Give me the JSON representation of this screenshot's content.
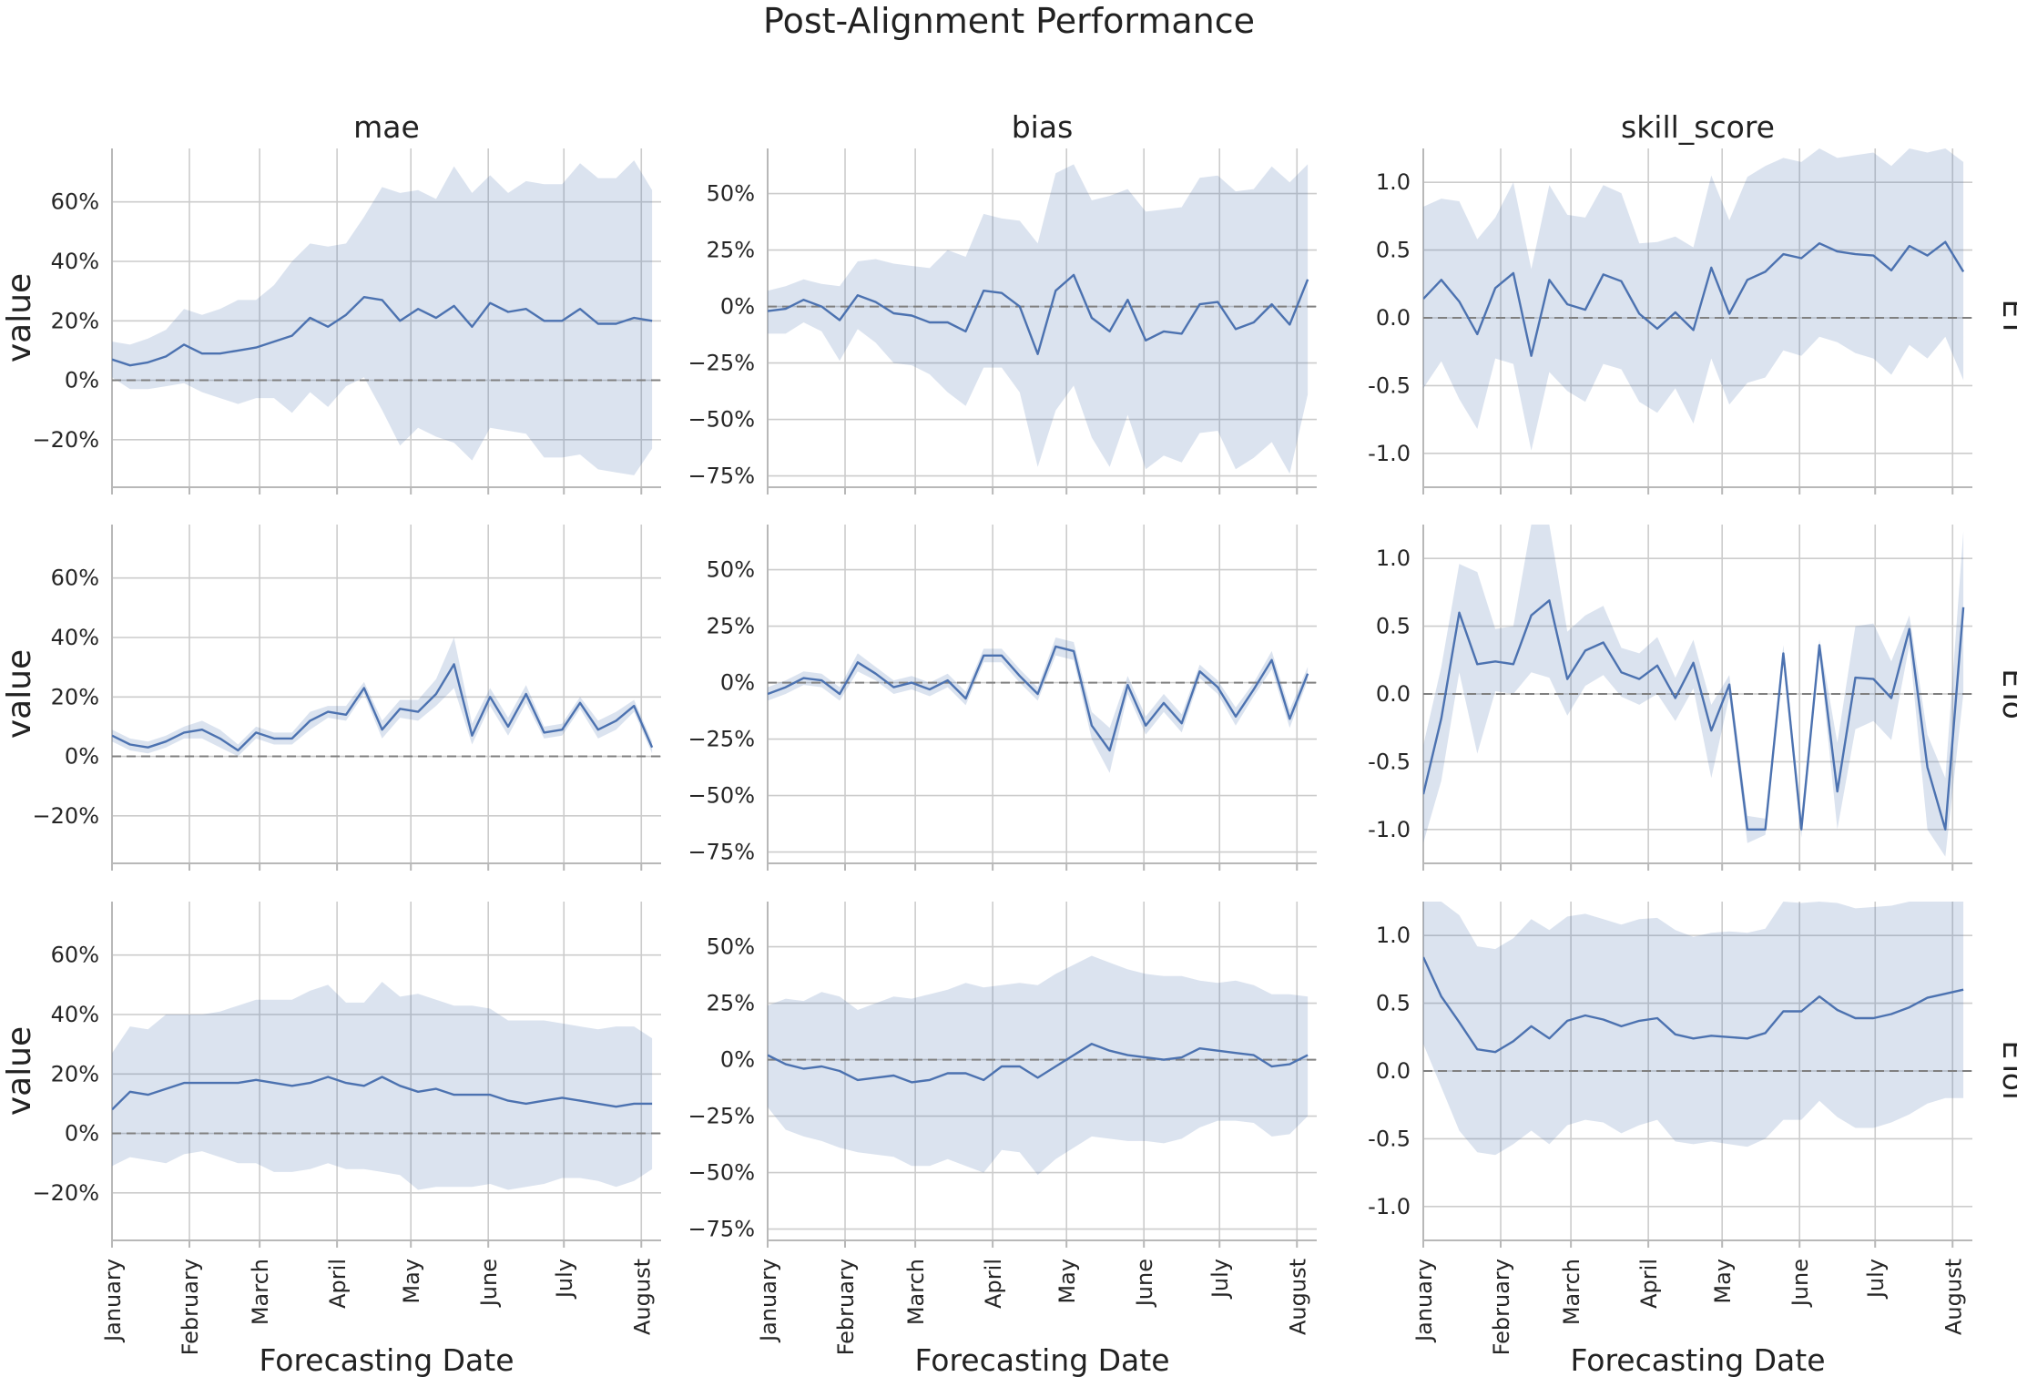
{
  "chart_data": {
    "type": "line",
    "title": "Post-Alignment Performance",
    "columns": [
      "mae",
      "bias",
      "skill_score"
    ],
    "rows": [
      "ET",
      "ETo",
      "ETof"
    ],
    "xlabel": "Forecasting Date",
    "ylabel": "value",
    "xlim": [
      0,
      30.5
    ],
    "x_ticks": [
      {
        "label": "January",
        "x": 0
      },
      {
        "label": "February",
        "x": 4.3
      },
      {
        "label": "March",
        "x": 8.2
      },
      {
        "label": "April",
        "x": 12.5
      },
      {
        "label": "May",
        "x": 16.6
      },
      {
        "label": "June",
        "x": 20.9
      },
      {
        "label": "July",
        "x": 25.1
      },
      {
        "label": "August",
        "x": 29.4
      }
    ],
    "x": [
      0,
      1,
      2,
      3,
      4,
      5,
      6,
      7,
      8,
      9,
      10,
      11,
      12,
      13,
      14,
      15,
      16,
      17,
      18,
      19,
      20,
      21,
      22,
      23,
      24,
      25,
      26,
      27,
      28,
      29,
      30
    ],
    "reference_line": 0,
    "colors": {
      "line": "#4c72b0",
      "band": "#4c72b0",
      "reference": "#808080"
    },
    "panels": [
      {
        "row": "ET",
        "col": "mae",
        "ylim": [
          -36,
          78
        ],
        "yticks": [
          -20,
          0,
          20,
          40,
          60
        ],
        "tick_format": "percent",
        "values": [
          7,
          5,
          6,
          8,
          12,
          9,
          9,
          10,
          11,
          13,
          15,
          21,
          18,
          22,
          28,
          27,
          20,
          24,
          21,
          25,
          18,
          26,
          23,
          24,
          20,
          20,
          24,
          19,
          19,
          21,
          20
        ],
        "upper": [
          13,
          12,
          14,
          17,
          24,
          22,
          24,
          27,
          27,
          32,
          40,
          46,
          45,
          46,
          55,
          65,
          63,
          64,
          61,
          72,
          63,
          69,
          63,
          67,
          66,
          66,
          73,
          68,
          68,
          74,
          64
        ],
        "lower": [
          1,
          -3,
          -3,
          -2,
          -1,
          -4,
          -6,
          -8,
          -6,
          -6,
          -11,
          -4,
          -9,
          -2,
          1,
          -10,
          -22,
          -16,
          -19,
          -21,
          -27,
          -16,
          -17,
          -18,
          -26,
          -26,
          -25,
          -30,
          -31,
          -32,
          -23
        ]
      },
      {
        "row": "ET",
        "col": "bias",
        "ylim": [
          -80,
          70
        ],
        "yticks": [
          -75,
          -50,
          -25,
          0,
          25,
          50
        ],
        "tick_format": "percent",
        "values": [
          -2,
          -1,
          3,
          0,
          -6,
          5,
          2,
          -3,
          -4,
          -7,
          -7,
          -11,
          7,
          6,
          0,
          -21,
          7,
          14,
          -5,
          -11,
          3,
          -15,
          -11,
          -12,
          1,
          2,
          -10,
          -7,
          1,
          -8,
          12
        ],
        "upper": [
          7,
          9,
          12,
          10,
          9,
          20,
          21,
          19,
          18,
          17,
          25,
          22,
          41,
          39,
          38,
          28,
          59,
          63,
          47,
          49,
          52,
          42,
          43,
          44,
          57,
          58,
          51,
          52,
          62,
          55,
          63
        ],
        "lower": [
          -12,
          -12,
          -7,
          -11,
          -24,
          -10,
          -16,
          -25,
          -26,
          -30,
          -38,
          -44,
          -27,
          -27,
          -38,
          -71,
          -46,
          -35,
          -58,
          -71,
          -48,
          -72,
          -66,
          -69,
          -56,
          -55,
          -72,
          -67,
          -60,
          -74,
          -39
        ]
      },
      {
        "row": "ET",
        "col": "skill_score",
        "ylim": [
          -1.25,
          1.25
        ],
        "yticks": [
          -1,
          -0.5,
          0,
          0.5,
          1
        ],
        "tick_format": "decimal1",
        "values": [
          0.14,
          0.28,
          0.12,
          -0.12,
          0.22,
          0.33,
          -0.28,
          0.28,
          0.1,
          0.06,
          0.32,
          0.27,
          0.03,
          -0.08,
          0.04,
          -0.09,
          0.37,
          0.03,
          0.28,
          0.34,
          0.47,
          0.44,
          0.55,
          0.49,
          0.47,
          0.46,
          0.35,
          0.53,
          0.46,
          0.56,
          0.34
        ],
        "upper": [
          0.82,
          0.88,
          0.86,
          0.58,
          0.74,
          1.0,
          0.36,
          0.98,
          0.76,
          0.74,
          0.98,
          0.92,
          0.55,
          0.56,
          0.6,
          0.52,
          1.05,
          0.72,
          1.04,
          1.12,
          1.18,
          1.15,
          1.25,
          1.18,
          1.2,
          1.22,
          1.12,
          1.25,
          1.22,
          1.25,
          1.15
        ],
        "lower": [
          -0.52,
          -0.32,
          -0.6,
          -0.82,
          -0.3,
          -0.34,
          -0.98,
          -0.4,
          -0.54,
          -0.62,
          -0.34,
          -0.38,
          -0.62,
          -0.7,
          -0.52,
          -0.78,
          -0.3,
          -0.64,
          -0.48,
          -0.44,
          -0.24,
          -0.28,
          -0.14,
          -0.18,
          -0.26,
          -0.3,
          -0.42,
          -0.2,
          -0.3,
          -0.14,
          -0.46
        ]
      },
      {
        "row": "ETo",
        "col": "mae",
        "ylim": [
          -36,
          78
        ],
        "yticks": [
          -20,
          0,
          20,
          40,
          60
        ],
        "tick_format": "percent",
        "values": [
          7,
          4,
          3,
          5,
          8,
          9,
          6,
          2,
          8,
          6,
          6,
          12,
          15,
          14,
          23,
          9,
          16,
          15,
          21,
          31,
          7,
          20,
          10,
          21,
          8,
          9,
          18,
          9,
          12,
          17,
          3
        ],
        "upper": [
          9,
          6,
          5,
          7,
          10,
          12,
          9,
          4,
          10,
          8,
          8,
          15,
          17,
          17,
          25,
          12,
          19,
          19,
          26,
          40,
          11,
          23,
          13,
          24,
          10,
          11,
          20,
          12,
          15,
          19,
          5
        ],
        "lower": [
          5,
          2,
          1,
          3,
          6,
          6,
          3,
          0,
          6,
          4,
          4,
          9,
          13,
          12,
          21,
          6,
          13,
          12,
          17,
          23,
          4,
          17,
          7,
          18,
          6,
          7,
          16,
          6,
          9,
          15,
          1
        ]
      },
      {
        "row": "ETo",
        "col": "bias",
        "ylim": [
          -80,
          70
        ],
        "yticks": [
          -75,
          -50,
          -25,
          0,
          25,
          50
        ],
        "tick_format": "percent",
        "values": [
          -5,
          -2,
          2,
          1,
          -5,
          9,
          4,
          -2,
          0,
          -3,
          1,
          -7,
          12,
          12,
          3,
          -5,
          16,
          14,
          -19,
          -30,
          -1,
          -19,
          -9,
          -18,
          5,
          -2,
          -15,
          -3,
          10,
          -16,
          4
        ],
        "upper": [
          -2,
          1,
          5,
          4,
          -2,
          13,
          7,
          1,
          3,
          0,
          4,
          -4,
          15,
          15,
          6,
          -2,
          20,
          18,
          -13,
          -20,
          3,
          -15,
          -5,
          -14,
          8,
          1,
          -11,
          0,
          14,
          -12,
          7
        ],
        "lower": [
          -8,
          -5,
          -1,
          -2,
          -8,
          5,
          1,
          -5,
          -3,
          -6,
          -2,
          -10,
          9,
          9,
          0,
          -8,
          12,
          10,
          -25,
          -40,
          -5,
          -23,
          -13,
          -22,
          2,
          -5,
          -19,
          -6,
          6,
          -20,
          1
        ]
      },
      {
        "row": "ETo",
        "col": "skill_score",
        "ylim": [
          -1.25,
          1.25
        ],
        "yticks": [
          -1,
          -0.5,
          0,
          0.5,
          1
        ],
        "tick_format": "decimal1",
        "values": [
          -0.74,
          -0.18,
          0.6,
          0.22,
          0.24,
          0.22,
          0.58,
          0.69,
          0.11,
          0.32,
          0.38,
          0.16,
          0.11,
          0.21,
          -0.03,
          0.23,
          -0.27,
          0.07,
          -1.0,
          -1.0,
          0.3,
          -1.0,
          0.36,
          -0.72,
          0.12,
          0.11,
          -0.03,
          0.48,
          -0.54,
          -1.0,
          0.64
        ],
        "upper": [
          -0.38,
          0.2,
          0.96,
          0.9,
          0.48,
          0.5,
          1.25,
          1.25,
          0.46,
          0.58,
          0.65,
          0.34,
          0.3,
          0.42,
          0.12,
          0.4,
          -0.08,
          0.14,
          -0.9,
          -0.92,
          0.36,
          -0.9,
          0.4,
          -0.36,
          0.5,
          0.52,
          0.24,
          0.58,
          -0.3,
          -0.62,
          1.2
        ],
        "lower": [
          -1.1,
          -0.64,
          0.16,
          -0.44,
          0.02,
          0.0,
          0.16,
          0.12,
          -0.16,
          0.06,
          0.14,
          -0.02,
          -0.08,
          0.0,
          -0.2,
          0.04,
          -0.62,
          -0.02,
          -1.1,
          -1.04,
          0.22,
          -1.06,
          0.3,
          -1.0,
          -0.26,
          -0.2,
          -0.34,
          0.36,
          -1.0,
          -1.2,
          0.0
        ]
      },
      {
        "row": "ETof",
        "col": "mae",
        "ylim": [
          -36,
          78
        ],
        "yticks": [
          -20,
          0,
          20,
          40,
          60
        ],
        "tick_format": "percent",
        "values": [
          8,
          14,
          13,
          15,
          17,
          17,
          17,
          17,
          18,
          17,
          16,
          17,
          19,
          17,
          16,
          19,
          16,
          14,
          15,
          13,
          13,
          13,
          11,
          10,
          11,
          12,
          11,
          10,
          9,
          10,
          10
        ],
        "upper": [
          27,
          36,
          35,
          40,
          40,
          40,
          41,
          43,
          45,
          45,
          45,
          48,
          50,
          44,
          44,
          51,
          46,
          47,
          45,
          43,
          43,
          42,
          38,
          38,
          38,
          37,
          36,
          35,
          36,
          36,
          32
        ],
        "lower": [
          -11,
          -8,
          -9,
          -10,
          -7,
          -6,
          -8,
          -10,
          -10,
          -13,
          -13,
          -12,
          -10,
          -12,
          -12,
          -13,
          -14,
          -19,
          -18,
          -18,
          -18,
          -17,
          -19,
          -18,
          -17,
          -15,
          -15,
          -16,
          -18,
          -16,
          -12
        ]
      },
      {
        "row": "ETof",
        "col": "bias",
        "ylim": [
          -80,
          70
        ],
        "yticks": [
          -75,
          -50,
          -25,
          0,
          25,
          50
        ],
        "tick_format": "percent",
        "values": [
          2,
          -2,
          -4,
          -3,
          -5,
          -9,
          -8,
          -7,
          -10,
          -9,
          -6,
          -6,
          -9,
          -3,
          -3,
          -8,
          -3,
          2,
          7,
          4,
          2,
          1,
          0,
          1,
          5,
          4,
          3,
          2,
          -3,
          -2,
          2
        ],
        "upper": [
          24,
          27,
          26,
          30,
          28,
          22,
          25,
          28,
          27,
          29,
          31,
          34,
          32,
          33,
          34,
          33,
          38,
          42,
          46,
          43,
          40,
          38,
          37,
          37,
          35,
          34,
          35,
          33,
          29,
          29,
          28
        ],
        "lower": [
          -21,
          -31,
          -34,
          -36,
          -39,
          -41,
          -42,
          -43,
          -47,
          -47,
          -44,
          -47,
          -50,
          -40,
          -41,
          -51,
          -44,
          -39,
          -34,
          -35,
          -36,
          -36,
          -37,
          -35,
          -30,
          -27,
          -27,
          -28,
          -34,
          -33,
          -25
        ]
      },
      {
        "row": "ETof",
        "col": "skill_score",
        "ylim": [
          -1.25,
          1.25
        ],
        "yticks": [
          -1,
          -0.5,
          0,
          0.5,
          1
        ],
        "tick_format": "decimal1",
        "values": [
          0.84,
          0.55,
          0.36,
          0.16,
          0.14,
          0.22,
          0.33,
          0.24,
          0.37,
          0.41,
          0.38,
          0.33,
          0.37,
          0.39,
          0.27,
          0.24,
          0.26,
          0.25,
          0.24,
          0.28,
          0.44,
          0.44,
          0.55,
          0.45,
          0.39,
          0.39,
          0.42,
          0.47,
          0.54,
          0.57,
          0.6
        ],
        "upper": [
          1.25,
          1.25,
          1.15,
          0.92,
          0.9,
          0.98,
          1.12,
          1.04,
          1.14,
          1.16,
          1.12,
          1.08,
          1.12,
          1.13,
          1.04,
          0.99,
          1.02,
          1.03,
          1.02,
          1.05,
          1.25,
          1.24,
          1.25,
          1.24,
          1.2,
          1.21,
          1.22,
          1.25,
          1.25,
          1.25,
          1.25
        ],
        "lower": [
          0.2,
          -0.12,
          -0.44,
          -0.6,
          -0.62,
          -0.54,
          -0.44,
          -0.54,
          -0.4,
          -0.36,
          -0.38,
          -0.46,
          -0.4,
          -0.36,
          -0.52,
          -0.54,
          -0.52,
          -0.54,
          -0.56,
          -0.5,
          -0.36,
          -0.36,
          -0.22,
          -0.34,
          -0.42,
          -0.42,
          -0.38,
          -0.32,
          -0.24,
          -0.2,
          -0.2
        ]
      }
    ]
  }
}
